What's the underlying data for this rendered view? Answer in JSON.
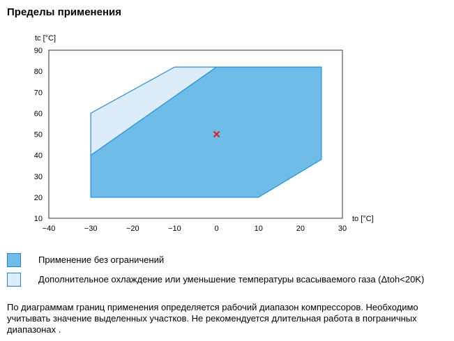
{
  "title": "Пределы применения",
  "chart_data": {
    "type": "area",
    "xlabel": "to [°C]",
    "ylabel": "tc [°C]",
    "xlim": [
      -40,
      30
    ],
    "ylim": [
      10,
      90
    ],
    "xticks": [
      -40,
      -30,
      -20,
      -10,
      0,
      10,
      20,
      30
    ],
    "yticks": [
      10,
      20,
      30,
      40,
      50,
      60,
      70,
      80,
      90
    ],
    "grid": false,
    "regions": [
      {
        "name": "Дополнительное охлаждение или уменьшение температуры всасываемого газа (Δtoh<20K)",
        "color": "#dcedf9",
        "points": [
          [
            -30,
            40
          ],
          [
            -30,
            60
          ],
          [
            -10,
            82
          ],
          [
            0,
            82
          ]
        ]
      },
      {
        "name": "Применение без ограничений",
        "color": "#6fbce8",
        "points": [
          [
            -30,
            20
          ],
          [
            10,
            20
          ],
          [
            25,
            38
          ],
          [
            25,
            82
          ],
          [
            0,
            82
          ],
          [
            -30,
            40
          ]
        ]
      }
    ],
    "marker": {
      "x": 0,
      "y": 50,
      "symbol": "x",
      "color": "#e0202c"
    }
  },
  "legend": [
    {
      "label": "Применение без ограничений",
      "color": "#6fbce8"
    },
    {
      "label": "Дополнительное охлаждение или уменьшение температуры всасываемого газа (Δtoh<20K)",
      "color": "#dcedf9"
    }
  ],
  "note": "По диаграммам границ применения определяется рабочий диапазон компрессоров. Необходимо учитывать значение выделенных участков. Не рекомендуется длительная работа в пограничных диапазонах ."
}
